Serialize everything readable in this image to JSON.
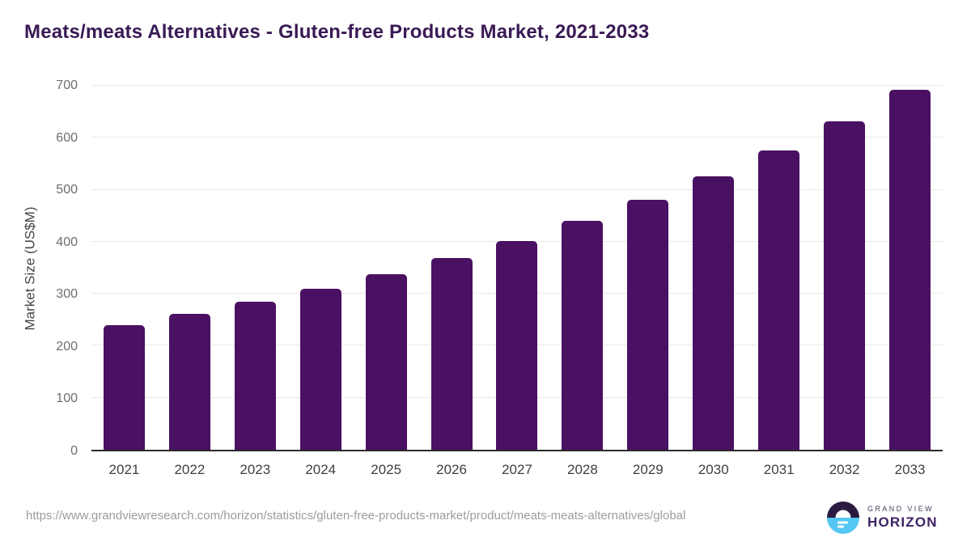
{
  "header": {
    "title": "Meats/meats Alternatives - Gluten-free Products Market, 2021-2033"
  },
  "chart_data": {
    "type": "bar",
    "title": "Meats/meats Alternatives - Gluten-free Products Market, 2021-2033",
    "categories": [
      "2021",
      "2022",
      "2023",
      "2024",
      "2025",
      "2026",
      "2027",
      "2028",
      "2029",
      "2030",
      "2031",
      "2032",
      "2033"
    ],
    "values": [
      240,
      261,
      285,
      309,
      337,
      368,
      402,
      440,
      481,
      526,
      576,
      632,
      693
    ],
    "xlabel": "",
    "ylabel": "Market Size (US$M)",
    "ylim": [
      0,
      700
    ],
    "yticks": [
      0,
      100,
      200,
      300,
      400,
      500,
      600,
      700
    ],
    "grid": true,
    "legend": false,
    "bar_color": "#4a1062"
  },
  "colors": {
    "title": "#3a1a55",
    "bar": "#4a1062",
    "gridline": "#e8e8e8",
    "axis_line": "#2b2b2b",
    "y_tick_text": "#6d6d6d",
    "x_tick_text": "#3f3f3f",
    "url_text": "#9c9c9c",
    "logo_top": "#2b1b41",
    "logo_bottom": "#55c7f2"
  },
  "footer": {
    "source_url": "https://www.grandviewresearch.com/horizon/statistics/gluten-free-products-market/product/meats-meats-alternatives/global",
    "brand": {
      "line1": "GRAND VIEW",
      "line2": "HORIZON"
    }
  }
}
